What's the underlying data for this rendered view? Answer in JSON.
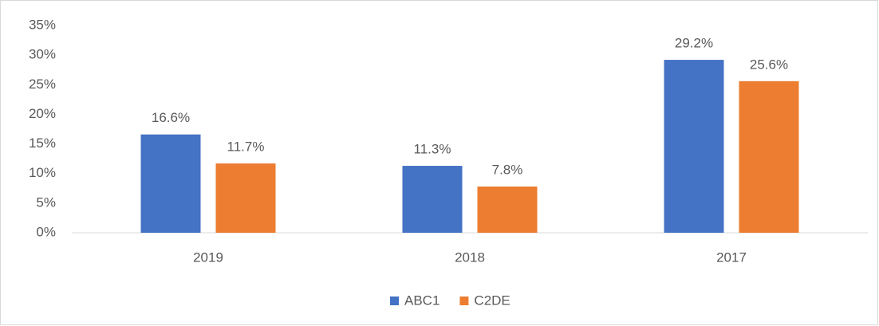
{
  "chart_data": {
    "type": "bar",
    "categories": [
      "2019",
      "2018",
      "2017"
    ],
    "series": [
      {
        "name": "ABC1",
        "color": "#4472c4",
        "values": [
          16.6,
          11.3,
          29.2
        ],
        "value_labels": [
          "16.6%",
          "11.3%",
          "29.2%"
        ]
      },
      {
        "name": "C2DE",
        "color": "#ed7d31",
        "values": [
          11.7,
          7.8,
          25.6
        ],
        "value_labels": [
          "11.7%",
          "7.8%",
          "25.6%"
        ]
      }
    ],
    "ylim": [
      0,
      35
    ],
    "yticks": [
      {
        "value": 0,
        "label": "0%"
      },
      {
        "value": 5,
        "label": "5%"
      },
      {
        "value": 10,
        "label": "10%"
      },
      {
        "value": 15,
        "label": "15%"
      },
      {
        "value": 20,
        "label": "20%"
      },
      {
        "value": 25,
        "label": "25%"
      },
      {
        "value": 30,
        "label": "30%"
      },
      {
        "value": 35,
        "label": "35%"
      }
    ],
    "grid": false,
    "legend": "bottom"
  }
}
